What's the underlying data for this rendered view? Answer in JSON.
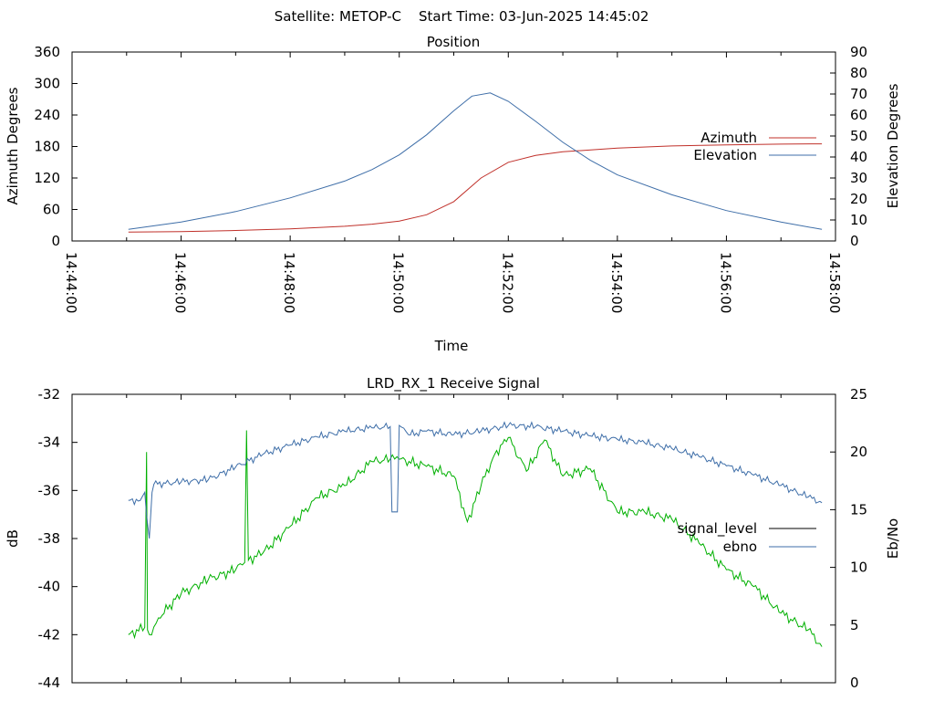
{
  "header": {
    "satellite_label": "Satellite: METOP-C",
    "start_time_label": "Start Time: 03-Jun-2025 14:45:02"
  },
  "chart_data": [
    {
      "type": "line",
      "title": "Position",
      "xlabel": "Time",
      "ylabel": "Azimuth Degrees",
      "y2label": "Elevation Degrees",
      "xlim": [
        "14:44:00",
        "14:58:00"
      ],
      "ylim": [
        0,
        360
      ],
      "y2lim": [
        0,
        90
      ],
      "x_ticks": [
        "14:44:00",
        "14:46:00",
        "14:48:00",
        "14:50:00",
        "14:52:00",
        "14:54:00",
        "14:56:00",
        "14:58:00"
      ],
      "y_ticks": [
        "0",
        "60",
        "120",
        "180",
        "240",
        "300",
        "360"
      ],
      "y2_ticks": [
        "0",
        "10",
        "20",
        "30",
        "40",
        "50",
        "60",
        "70",
        "80",
        "90"
      ],
      "legend_position": "right",
      "grid": false,
      "series": [
        {
          "name": "Azimuth",
          "axis": "left",
          "color": "#c0302a",
          "x": [
            "14:45:02",
            "14:46:00",
            "14:47:00",
            "14:48:00",
            "14:49:00",
            "14:49:30",
            "14:50:00",
            "14:50:30",
            "14:51:00",
            "14:51:30",
            "14:52:00",
            "14:52:30",
            "14:53:00",
            "14:54:00",
            "14:55:00",
            "14:56:00",
            "14:57:00",
            "14:57:45"
          ],
          "values": [
            17,
            18,
            20,
            23,
            28,
            32,
            38,
            50,
            75,
            120,
            150,
            163,
            170,
            177,
            181,
            183,
            184.5,
            185
          ]
        },
        {
          "name": "Elevation",
          "axis": "right",
          "color": "#3e6ea8",
          "x": [
            "14:45:02",
            "14:46:00",
            "14:47:00",
            "14:48:00",
            "14:49:00",
            "14:49:30",
            "14:50:00",
            "14:50:30",
            "14:51:00",
            "14:51:20",
            "14:51:40",
            "14:52:00",
            "14:52:30",
            "14:53:00",
            "14:53:30",
            "14:54:00",
            "14:55:00",
            "14:56:00",
            "14:57:00",
            "14:57:45"
          ],
          "values": [
            5.5,
            9,
            14,
            20.5,
            28.5,
            34,
            41,
            50.5,
            62,
            69,
            70.5,
            66.5,
            57,
            47,
            38.5,
            31.5,
            22,
            14.5,
            9,
            5.5
          ]
        }
      ]
    },
    {
      "type": "line",
      "title": "LRD_RX_1 Receive Signal",
      "xlabel": "",
      "ylabel": "dB",
      "y2label": "Eb/No",
      "ylim": [
        -44,
        -32
      ],
      "y2lim": [
        0,
        25
      ],
      "y_ticks": [
        "-32",
        "-34",
        "-36",
        "-38",
        "-40",
        "-42",
        "-44"
      ],
      "y2_ticks": [
        "0",
        "5",
        "10",
        "15",
        "20",
        "25"
      ],
      "legend_position": "right",
      "grid": false,
      "series": [
        {
          "name": "signal_level",
          "axis": "left",
          "color": "#00b000",
          "x": [
            "14:45:02",
            "14:45:20",
            "14:45:22",
            "14:45:23",
            "14:45:25",
            "14:45:35",
            "14:46:00",
            "14:46:30",
            "14:47:00",
            "14:47:10",
            "14:47:12",
            "14:47:14",
            "14:47:30",
            "14:48:00",
            "14:48:30",
            "14:49:00",
            "14:49:30",
            "14:49:50",
            "14:50:00",
            "14:50:30",
            "14:51:00",
            "14:51:15",
            "14:51:30",
            "14:51:45",
            "14:52:00",
            "14:52:20",
            "14:52:40",
            "14:53:00",
            "14:53:30",
            "14:54:00",
            "14:54:30",
            "14:55:00",
            "14:55:30",
            "14:56:00",
            "14:56:30",
            "14:57:00",
            "14:57:30",
            "14:57:45"
          ],
          "values": [
            -42.0,
            -41.7,
            -34.4,
            -41.8,
            -42.0,
            -41.3,
            -40.3,
            -39.7,
            -39.3,
            -39.0,
            -33.5,
            -38.9,
            -38.6,
            -37.5,
            -36.3,
            -35.8,
            -34.8,
            -34.7,
            -34.7,
            -35.0,
            -35.4,
            -37.3,
            -35.8,
            -34.5,
            -33.8,
            -35.2,
            -33.9,
            -35.4,
            -35.1,
            -36.9,
            -36.9,
            -37.2,
            -38.2,
            -39.3,
            -40.0,
            -41.1,
            -41.8,
            -42.5
          ]
        },
        {
          "name": "ebno",
          "axis": "right",
          "color": "#3e6ea8",
          "x": [
            "14:45:02",
            "14:45:15",
            "14:45:20",
            "14:45:22",
            "14:45:25",
            "14:45:28",
            "14:45:30",
            "14:46:00",
            "14:46:30",
            "14:47:00",
            "14:47:30",
            "14:48:00",
            "14:48:30",
            "14:49:00",
            "14:49:30",
            "14:49:50",
            "14:49:52",
            "14:49:58",
            "14:50:00",
            "14:50:10",
            "14:50:30",
            "14:51:00",
            "14:51:30",
            "14:52:00",
            "14:52:30",
            "14:53:00",
            "14:53:30",
            "14:54:00",
            "14:54:30",
            "14:55:00",
            "14:55:30",
            "14:56:00",
            "14:56:30",
            "14:57:00",
            "14:57:30",
            "14:57:45"
          ],
          "values": [
            15.8,
            15.8,
            16.5,
            14.5,
            12.5,
            16.5,
            17.2,
            17.4,
            17.6,
            18.7,
            19.8,
            20.6,
            21.3,
            21.8,
            22.1,
            22.2,
            14.8,
            14.8,
            22.3,
            21.5,
            21.8,
            21.5,
            21.8,
            22.3,
            22.2,
            21.8,
            21.4,
            21.1,
            20.8,
            20.3,
            19.6,
            18.8,
            18.0,
            17.1,
            16.1,
            15.6
          ]
        }
      ]
    }
  ]
}
